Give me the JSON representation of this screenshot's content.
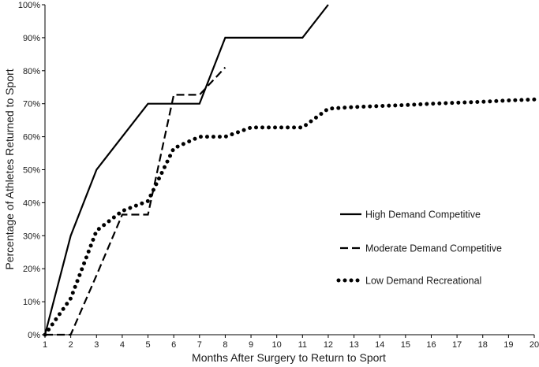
{
  "chart_data": {
    "type": "line",
    "title": "",
    "xlabel": "Months After Surgery to Return to Sport",
    "ylabel": "Percentage of Athletes Returned to Sport",
    "xlim": [
      1,
      20
    ],
    "ylim": [
      0,
      100
    ],
    "x_ticks": [
      "1",
      "2",
      "3",
      "4",
      "5",
      "6",
      "7",
      "8",
      "9",
      "10",
      "11",
      "12",
      "13",
      "14",
      "15",
      "16",
      "17",
      "18",
      "19",
      "20"
    ],
    "y_ticks": [
      "0%",
      "10%",
      "20%",
      "30%",
      "40%",
      "50%",
      "60%",
      "70%",
      "80%",
      "90%",
      "100%"
    ],
    "grid": false,
    "legend_position": "right-center",
    "series": [
      {
        "name": "High Demand Competitive",
        "style": "solid",
        "color": "#000000",
        "points": [
          [
            1,
            0
          ],
          [
            2,
            30
          ],
          [
            3,
            50
          ],
          [
            4,
            60
          ],
          [
            5,
            70
          ],
          [
            6,
            70
          ],
          [
            7,
            70
          ],
          [
            8,
            90
          ],
          [
            9,
            90
          ],
          [
            10,
            90
          ],
          [
            11,
            90
          ],
          [
            12,
            100
          ]
        ]
      },
      {
        "name": "Moderate Demand Competitive",
        "style": "dashed",
        "color": "#000000",
        "points": [
          [
            1,
            0
          ],
          [
            2,
            0
          ],
          [
            3,
            18
          ],
          [
            4,
            36.4
          ],
          [
            5,
            36.4
          ],
          [
            6,
            72.7
          ],
          [
            7,
            72.7
          ],
          [
            8,
            81
          ]
        ]
      },
      {
        "name": "Low Demand Recreational",
        "style": "dotted",
        "color": "#000000",
        "points": [
          [
            1,
            0
          ],
          [
            2,
            11
          ],
          [
            3,
            31.5
          ],
          [
            4,
            37.5
          ],
          [
            5,
            40.5
          ],
          [
            6,
            56.5
          ],
          [
            7,
            60
          ],
          [
            8,
            60
          ],
          [
            9,
            62.8
          ],
          [
            10,
            62.8
          ],
          [
            11,
            62.8
          ],
          [
            12,
            68.5
          ],
          [
            13,
            69
          ],
          [
            14,
            69.3
          ],
          [
            15,
            69.6
          ],
          [
            16,
            70
          ],
          [
            17,
            70.3
          ],
          [
            18,
            70.6
          ],
          [
            19,
            71
          ],
          [
            20,
            71.3
          ]
        ]
      }
    ]
  }
}
